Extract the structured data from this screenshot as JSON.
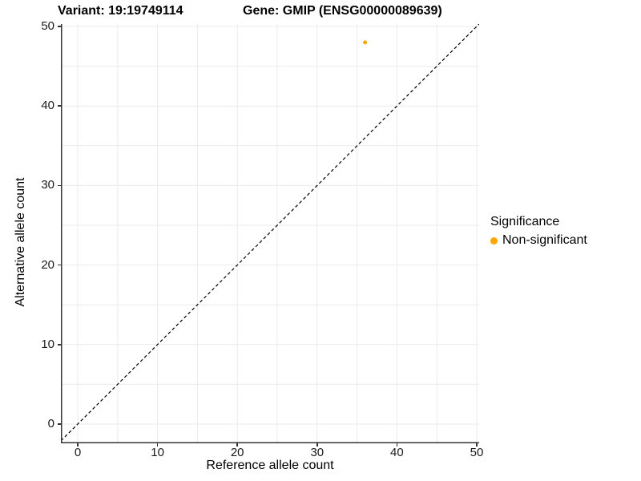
{
  "page": {
    "background": "#ffffff"
  },
  "chart_data": {
    "type": "scatter",
    "title_left": "Variant: 19:19749114",
    "title_right": "Gene: GMIP (ENSG00000089639)",
    "xlabel": "Reference allele count",
    "ylabel": "Alternative allele count",
    "xlim": [
      0,
      50
    ],
    "ylim": [
      0,
      50
    ],
    "xticks": [
      0,
      10,
      20,
      30,
      40,
      50
    ],
    "yticks": [
      0,
      10,
      20,
      30,
      40,
      50
    ],
    "grid": true,
    "grid_step": 5,
    "grid_color": "#ebebeb",
    "axis_color": "#333333",
    "points": [
      {
        "x": 36,
        "y": 48,
        "series": "Non-significant",
        "color": "#FFA500"
      }
    ],
    "point_radius": 2.5,
    "identity_line": {
      "style": "dashed",
      "slope": 1,
      "intercept": 0,
      "color": "#000000"
    },
    "legend": {
      "title": "Significance",
      "position": "right",
      "entries": [
        {
          "label": "Non-significant",
          "color": "#FFA500"
        }
      ]
    }
  }
}
